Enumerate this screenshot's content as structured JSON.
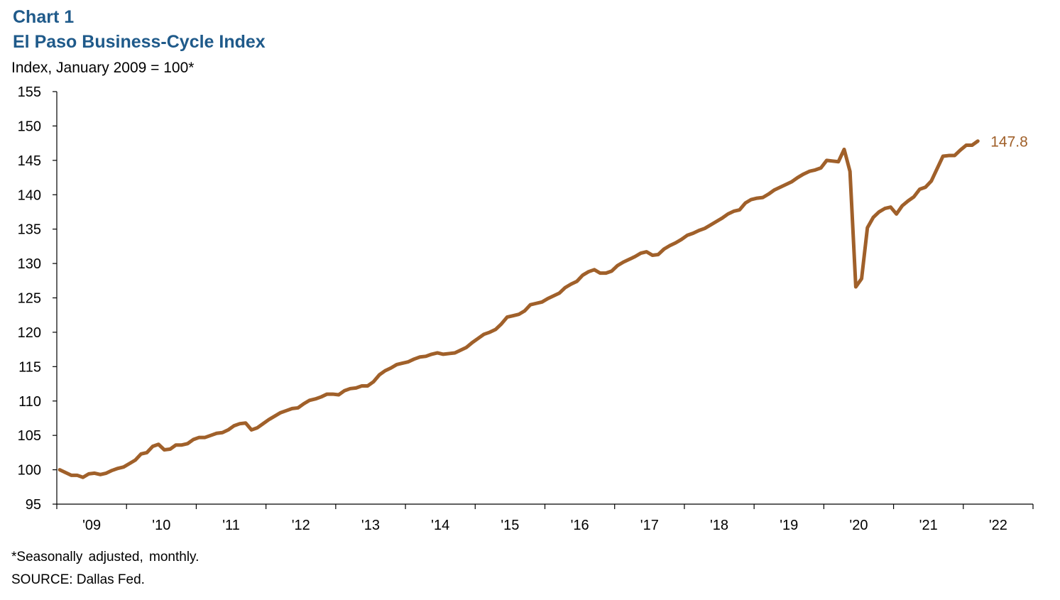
{
  "header": {
    "chart_number": "Chart 1",
    "title": "El Paso Business-Cycle Index",
    "subtitle": "Index, January 2009 = 100*"
  },
  "notes": {
    "footnote": "*Seasonally adjusted, monthly.",
    "source": "SOURCE: Dallas Fed."
  },
  "colors": {
    "line": "#a0602a",
    "title": "#1f5a8a",
    "axis": "#000000"
  },
  "chart_data": {
    "type": "line",
    "title": "El Paso Business-Cycle Index",
    "ylabel": "Index, January 2009 = 100*",
    "xlabel": "",
    "ylim": [
      95,
      155
    ],
    "yticks": [
      95,
      100,
      105,
      110,
      115,
      120,
      125,
      130,
      135,
      140,
      145,
      150,
      155
    ],
    "x_range": [
      "2009-01",
      "2022-12"
    ],
    "x_tick_labels": [
      "'09",
      "'10",
      "'11",
      "'12",
      "'13",
      "'14",
      "'15",
      "'16",
      "'17",
      "'18",
      "'19",
      "'20",
      "'21",
      "'22"
    ],
    "grid": false,
    "legend": "none",
    "end_label": "147.8",
    "series": [
      {
        "start": "2009-01",
        "frequency": "monthly",
        "values": [
          100.0,
          99.6,
          99.2,
          99.2,
          98.9,
          99.4,
          99.5,
          99.3,
          99.5,
          99.9,
          100.2,
          100.4,
          100.9,
          101.4,
          102.3,
          102.5,
          103.4,
          103.7,
          102.9,
          103.0,
          103.6,
          103.6,
          103.8,
          104.4,
          104.7,
          104.7,
          105.0,
          105.3,
          105.4,
          105.8,
          106.4,
          106.7,
          106.8,
          105.8,
          106.1,
          106.7,
          107.3,
          107.8,
          108.3,
          108.6,
          108.9,
          109.0,
          109.6,
          110.1,
          110.3,
          110.6,
          111.0,
          111.0,
          110.9,
          111.5,
          111.8,
          111.9,
          112.2,
          112.2,
          112.8,
          113.8,
          114.4,
          114.8,
          115.3,
          115.5,
          115.7,
          116.1,
          116.4,
          116.5,
          116.8,
          117.0,
          116.8,
          116.9,
          117.0,
          117.4,
          117.8,
          118.5,
          119.1,
          119.7,
          120.0,
          120.4,
          121.2,
          122.2,
          122.4,
          122.6,
          123.1,
          124.0,
          124.2,
          124.4,
          124.9,
          125.3,
          125.7,
          126.5,
          127.0,
          127.4,
          128.3,
          128.8,
          129.1,
          128.6,
          128.6,
          128.9,
          129.7,
          130.2,
          130.6,
          131.0,
          131.5,
          131.7,
          131.2,
          131.3,
          132.1,
          132.6,
          133.0,
          133.5,
          134.1,
          134.4,
          134.8,
          135.1,
          135.6,
          136.1,
          136.6,
          137.2,
          137.6,
          137.8,
          138.8,
          139.3,
          139.5,
          139.6,
          140.1,
          140.7,
          141.1,
          141.5,
          141.9,
          142.5,
          143.0,
          143.4,
          143.6,
          143.9,
          145.0,
          144.9,
          144.8,
          146.6,
          143.4,
          126.6,
          127.8,
          135.2,
          136.7,
          137.5,
          138.0,
          138.2,
          137.2,
          138.4,
          139.1,
          139.7,
          140.8,
          141.1,
          142.0,
          143.8,
          145.6,
          145.7,
          145.7,
          146.5,
          147.2,
          147.2,
          147.8
        ]
      }
    ]
  }
}
